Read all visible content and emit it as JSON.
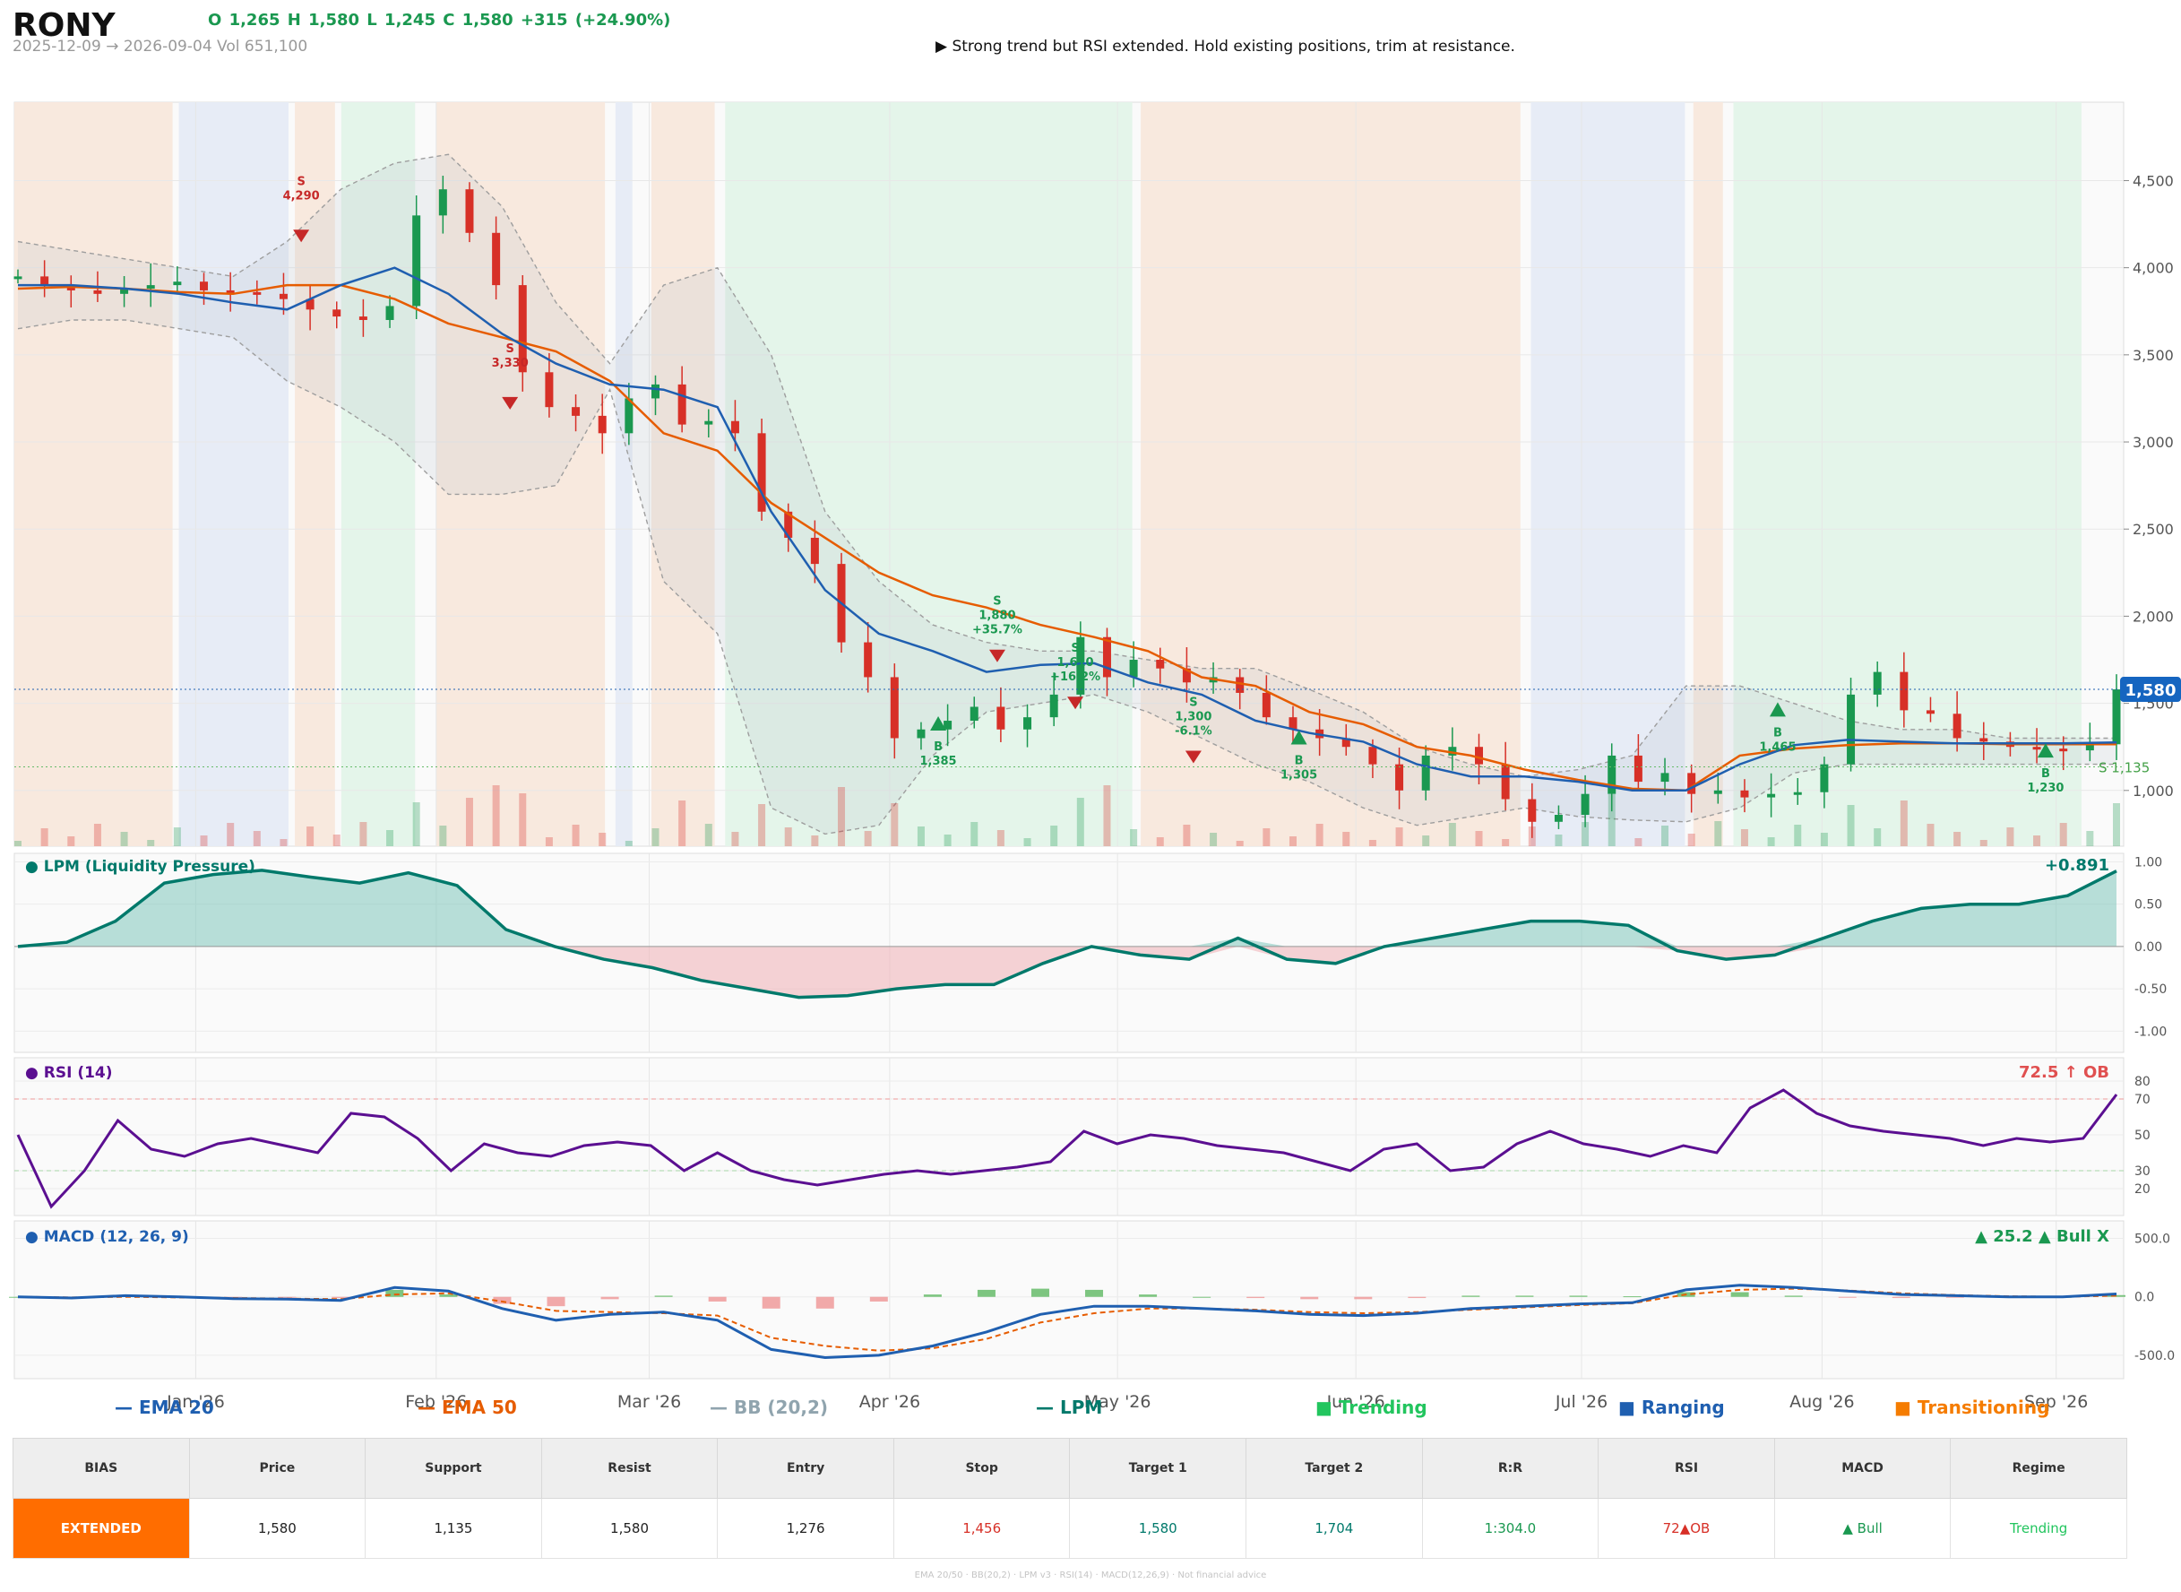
{
  "header": {
    "ticker": "RONY",
    "ohlc": "O 1,265   H 1,580   L 1,245   C 1,580   +315  (+24.90%)",
    "range": "2025-12-09 → 2026-09-04   Vol 651,100",
    "note": "▶  Strong trend but RSI extended. Hold existing positions, trim at resistance."
  },
  "panels": {
    "lpm_title": "● LPM (Liquidity Pressure)",
    "lpm_value": "+0.891",
    "rsi_title": "● RSI (14)",
    "rsi_value": "72.5 ↑ OB",
    "macd_title": "● MACD (12, 26, 9)",
    "macd_value": "▲ 25.2 ▲ Bull X"
  },
  "legend": {
    "ema20": "— EMA 20",
    "ema50": "— EMA 50",
    "bb": "— BB (20,2)",
    "lpm": "— LPM",
    "trending": "■ Trending",
    "ranging": "■ Ranging",
    "transitioning": "■ Transitioning"
  },
  "table": {
    "headers": [
      "BIAS",
      "Price",
      "Support",
      "Resist",
      "Entry",
      "Stop",
      "Target 1",
      "Target 2",
      "R:R",
      "RSI",
      "MACD",
      "Regime"
    ],
    "values": [
      "EXTENDED",
      "1,580",
      "1,135",
      "1,580",
      "1,276",
      "1,456",
      "1,580",
      "1,704",
      "1:304.0",
      "72▲OB",
      "▲ Bull",
      "Trending"
    ]
  },
  "footer": "EMA 20/50  ·  BB(20,2)  ·  LPM v3  ·  RSI(14)  ·  MACD(12,26,9)  ·  Not financial advice",
  "colors": {
    "up": "#1a9850",
    "down": "#d73027",
    "ema20": "#1f5fb0",
    "ema50": "#e65c00",
    "lpm": "#00796b",
    "rsi": "#5b0f91",
    "macd": "#1f5fb0",
    "signal": "#e65c00",
    "trending": "#e3f4e9",
    "ranging": "#e6ebf5",
    "transitioning": "#f8e8dc"
  },
  "chart_data": [
    {
      "type": "candlestick",
      "title": "RONY",
      "x_range": [
        "2025-12-09",
        "2026-09-04"
      ],
      "x_ticks": [
        "Jan '26",
        "Feb '26",
        "Mar '26",
        "Apr '26",
        "May '26",
        "Jun '26",
        "Jul '26",
        "Aug '26",
        "Sep '26"
      ],
      "y_ticks": [
        "1,000",
        "1,500",
        "2,000",
        "2,500",
        "3,000",
        "3,500",
        "4,000",
        "4,500"
      ],
      "ylim": [
        680,
        4950
      ],
      "last_price_label": "1,580",
      "support_label": "S 1,135",
      "close_series": [
        3950,
        3900,
        3870,
        3850,
        3880,
        3900,
        3920,
        3870,
        3860,
        3850,
        3820,
        3760,
        3720,
        3700,
        3780,
        4300,
        4450,
        4200,
        3900,
        3400,
        3200,
        3150,
        3050,
        3250,
        3330,
        3100,
        3120,
        3050,
        2600,
        2450,
        2300,
        1850,
        1650,
        1300,
        1350,
        1400,
        1480,
        1350,
        1420,
        1550,
        1880,
        1650,
        1750,
        1700,
        1620,
        1650,
        1560,
        1420,
        1350,
        1300,
        1250,
        1150,
        1000,
        1200,
        1250,
        1150,
        950,
        820,
        860,
        980,
        1200,
        1050,
        1100,
        980,
        1000,
        960,
        980,
        990,
        1150,
        1550,
        1680,
        1460,
        1440,
        1300,
        1280,
        1250,
        1240,
        1230,
        1265,
        1580
      ],
      "ema20": [
        3900,
        3900,
        3880,
        3850,
        3800,
        3760,
        3900,
        4000,
        3850,
        3620,
        3450,
        3330,
        3300,
        3200,
        2600,
        2150,
        1900,
        1800,
        1680,
        1720,
        1730,
        1620,
        1550,
        1400,
        1330,
        1280,
        1150,
        1080,
        1080,
        1050,
        1000,
        1000,
        1150,
        1260,
        1290,
        1280,
        1270,
        1270,
        1270,
        1275
      ],
      "ema50": [
        3880,
        3890,
        3880,
        3860,
        3850,
        3900,
        3900,
        3820,
        3680,
        3600,
        3520,
        3350,
        3050,
        2950,
        2650,
        2450,
        2250,
        2120,
        2050,
        1950,
        1880,
        1800,
        1650,
        1600,
        1450,
        1380,
        1250,
        1200,
        1120,
        1060,
        1010,
        1000,
        1200,
        1240,
        1260,
        1270,
        1270,
        1265,
        1265,
        1265
      ],
      "bb_upper": [
        4150,
        4100,
        4050,
        4000,
        3950,
        4150,
        4450,
        4600,
        4650,
        4350,
        3800,
        3450,
        3900,
        4000,
        3500,
        2600,
        2200,
        1950,
        1850,
        1800,
        1800,
        1750,
        1700,
        1700,
        1580,
        1450,
        1250,
        1150,
        1080,
        1120,
        1200,
        1600,
        1600,
        1500,
        1400,
        1350,
        1350,
        1300,
        1300,
        1300
      ],
      "bb_lower": [
        3650,
        3700,
        3700,
        3650,
        3600,
        3350,
        3200,
        3000,
        2700,
        2700,
        2750,
        3300,
        2200,
        1900,
        900,
        750,
        800,
        1200,
        1450,
        1500,
        1550,
        1450,
        1300,
        1150,
        1050,
        900,
        800,
        850,
        900,
        850,
        830,
        820,
        900,
        1100,
        1150,
        1150,
        1150,
        1150,
        1150,
        1150
      ],
      "signals": [
        {
          "side": "S",
          "price": "4,290"
        },
        {
          "side": "S",
          "price": "3,330"
        },
        {
          "side": "B",
          "price": "1,385"
        },
        {
          "side": "S",
          "price": "1,880",
          "pct": "+35.7%"
        },
        {
          "side": "S",
          "price": "1,610",
          "pct": "+16.2%"
        },
        {
          "side": "S",
          "price": "1,300",
          "pct": "-6.1%"
        },
        {
          "side": "B",
          "price": "1,305"
        },
        {
          "side": "B",
          "price": "1,465"
        },
        {
          "side": "B",
          "price": "1,230"
        }
      ],
      "regimes": [
        {
          "regime": "Transitioning",
          "from": 0.0,
          "to": 0.075
        },
        {
          "regime": "Ranging",
          "from": 0.078,
          "to": 0.13
        },
        {
          "regime": "Transitioning",
          "from": 0.133,
          "to": 0.152
        },
        {
          "regime": "Trending",
          "from": 0.155,
          "to": 0.19
        },
        {
          "regime": "Transitioning",
          "from": 0.2,
          "to": 0.28
        },
        {
          "regime": "Ranging",
          "from": 0.285,
          "to": 0.293
        },
        {
          "regime": "Transitioning",
          "from": 0.302,
          "to": 0.332
        },
        {
          "regime": "Trending",
          "from": 0.337,
          "to": 0.53
        },
        {
          "regime": "Transitioning",
          "from": 0.534,
          "to": 0.714
        },
        {
          "regime": "Ranging",
          "from": 0.719,
          "to": 0.792
        },
        {
          "regime": "Transitioning",
          "from": 0.796,
          "to": 0.81
        },
        {
          "regime": "Trending",
          "from": 0.815,
          "to": 0.98
        }
      ]
    },
    {
      "type": "area",
      "title": "LPM (Liquidity Pressure)",
      "ylim": [
        -1.25,
        1.1
      ],
      "y_ticks": [
        "1.00",
        "0.50",
        "0.00",
        "-0.50",
        "-1.00"
      ],
      "values": [
        0.0,
        0.05,
        0.3,
        0.75,
        0.85,
        0.9,
        0.82,
        0.75,
        0.87,
        0.72,
        0.2,
        0.0,
        -0.15,
        -0.25,
        -0.4,
        -0.5,
        -0.6,
        -0.58,
        -0.5,
        -0.45,
        -0.45,
        -0.2,
        0.0,
        -0.1,
        -0.15,
        0.1,
        -0.15,
        -0.2,
        0.0,
        0.1,
        0.2,
        0.3,
        0.3,
        0.25,
        -0.05,
        -0.15,
        -0.1,
        0.1,
        0.3,
        0.45,
        0.5,
        0.5,
        0.6,
        0.891
      ]
    },
    {
      "type": "line",
      "title": "RSI (14)",
      "ylim": [
        5,
        93
      ],
      "y_ticks": [
        "80",
        "70",
        "50",
        "30",
        "20"
      ],
      "values": [
        50,
        10,
        30,
        58,
        42,
        38,
        45,
        48,
        44,
        40,
        62,
        60,
        48,
        30,
        45,
        40,
        38,
        44,
        46,
        44,
        30,
        40,
        30,
        25,
        22,
        25,
        28,
        30,
        28,
        30,
        32,
        35,
        52,
        45,
        50,
        48,
        44,
        42,
        40,
        35,
        30,
        42,
        45,
        30,
        32,
        45,
        52,
        45,
        42,
        38,
        44,
        40,
        65,
        75,
        62,
        55,
        52,
        50,
        48,
        44,
        48,
        46,
        48,
        72.5
      ]
    },
    {
      "type": "bar+line",
      "title": "MACD (12, 26, 9)",
      "ylim": [
        -700,
        650
      ],
      "y_ticks": [
        "500.0",
        "0.0",
        "-500.0"
      ],
      "macd": [
        0,
        -10,
        10,
        0,
        -15,
        -20,
        -30,
        80,
        50,
        -100,
        -200,
        -150,
        -130,
        -200,
        -450,
        -520,
        -500,
        -420,
        -300,
        -150,
        -80,
        -80,
        -100,
        -120,
        -150,
        -160,
        -140,
        -100,
        -80,
        -60,
        -50,
        60,
        100,
        80,
        50,
        20,
        10,
        0,
        0,
        25
      ],
      "signal": [
        0,
        -5,
        0,
        -5,
        -10,
        -15,
        -20,
        20,
        30,
        -40,
        -120,
        -130,
        -140,
        -160,
        -350,
        -420,
        -460,
        -440,
        -360,
        -220,
        -140,
        -100,
        -100,
        -110,
        -130,
        -140,
        -130,
        -110,
        -90,
        -70,
        -55,
        20,
        60,
        70,
        55,
        30,
        15,
        5,
        0,
        10
      ]
    }
  ]
}
